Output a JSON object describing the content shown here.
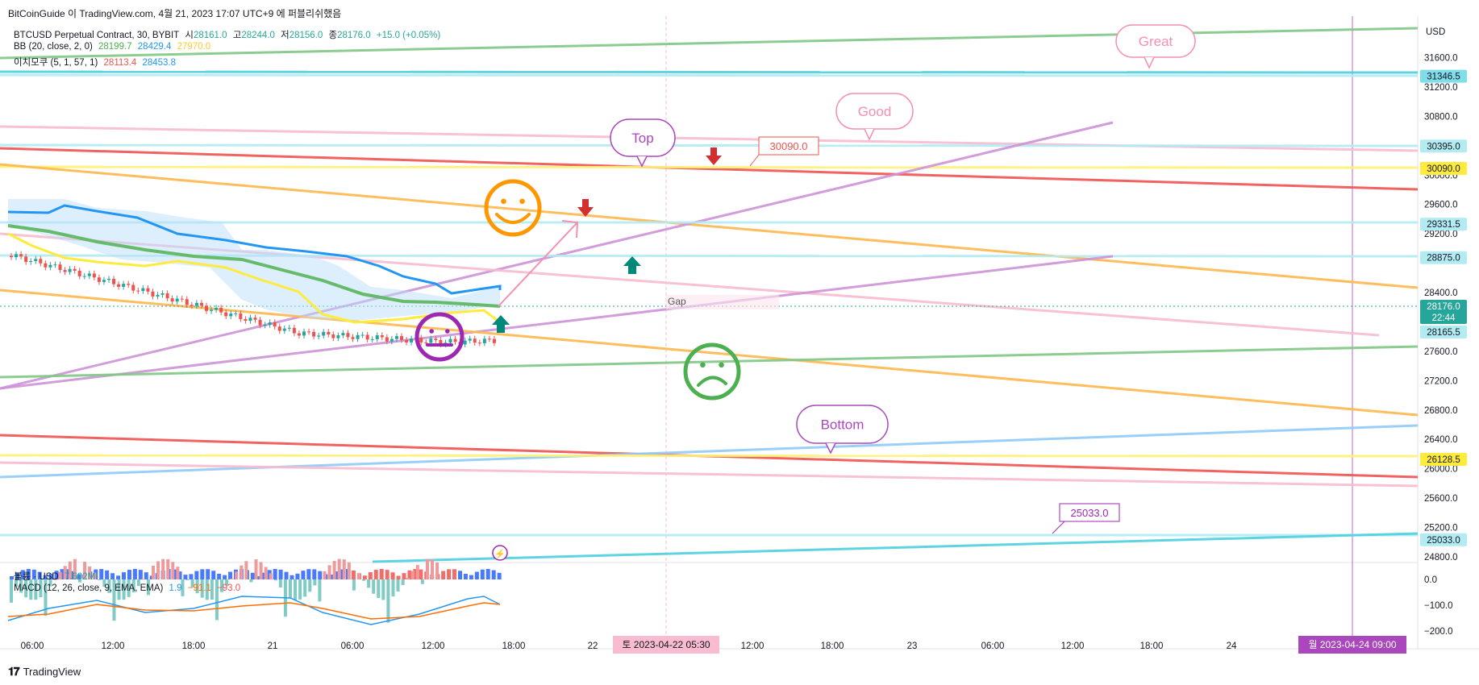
{
  "header": {
    "publish_info": "BitCoinGuide 이 TradingView.com, 4월 21, 2023 17:07 UTC+9 에 퍼블리쉬했음"
  },
  "legend": {
    "symbol": "BTCUSD Perpetual Contract, 30, BYBIT",
    "open_label": "시",
    "open": "28161.0",
    "high_label": "고",
    "high": "28244.0",
    "low_label": "저",
    "low": "28156.0",
    "close_label": "종",
    "close": "28176.0",
    "change": "+15.0 (+0.05%)",
    "bb_label": "BB (20, close, 2, 0)",
    "bb_values": [
      "28199.7",
      "28429.4",
      "27970.0"
    ],
    "ichimoku_label": "이치모쿠 (5, 1, 57, 1)",
    "ichimoku_values": [
      "28113.4",
      "28453.8"
    ],
    "volume_label": "볼륨 · USD",
    "volume_value": "7.602M",
    "macd_label": "MACD (12, 26, close, 9, EMA, EMA)",
    "macd_values": [
      "1.9",
      "−91.1",
      "−93.0"
    ]
  },
  "colors": {
    "up": "#26a69a",
    "down": "#ef5350",
    "orange": "#ff9800",
    "purple": "#9c27b0",
    "green": "#4caf50",
    "red": "#f44336",
    "yellow": "#ffeb3b",
    "cyan": "#80deea",
    "pink": "#f8bbd0",
    "blue": "#2196f3",
    "lightblue": "#90caf9"
  },
  "chart_data": {
    "type": "candlestick",
    "currency": "USD",
    "price_axis": {
      "ticks": [
        "31600.0",
        "31200.0",
        "30800.0",
        "30000.0",
        "29600.0",
        "29200.0",
        "28400.0",
        "27600.0",
        "27200.0",
        "26800.0",
        "26400.0",
        "26000.0",
        "25600.0",
        "25200.0",
        "24800.0"
      ]
    },
    "macd_axis": {
      "ticks": [
        "0.0",
        "−100.0",
        "−200.0"
      ]
    },
    "time_axis": {
      "ticks": [
        "06:00",
        "12:00",
        "18:00",
        "21",
        "06:00",
        "12:00",
        "18:00",
        "22",
        "12:00",
        "18:00",
        "23",
        "06:00",
        "12:00",
        "18:00",
        "24"
      ]
    },
    "crosshair_labels": [
      "토 2023-04-22  05:30",
      "월 2023-04-24  09:00"
    ],
    "price_labels": [
      {
        "text": "31346.5",
        "color": "#80deea"
      },
      {
        "text": "30395.0",
        "color": "#b2ebf2"
      },
      {
        "text": "30090.0",
        "color": "#ffeb3b"
      },
      {
        "text": "29331.5",
        "color": "#b2ebf2"
      },
      {
        "text": "28875.0",
        "color": "#b2ebf2"
      },
      {
        "text": "28176.0",
        "sub": "22:44",
        "color": "#26a69a"
      },
      {
        "text": "28165.5",
        "color": "#b2ebf2"
      },
      {
        "text": "26128.5",
        "color": "#ffeb3b"
      },
      {
        "text": "25033.0",
        "color": "#b2ebf2"
      }
    ],
    "annotations": {
      "great": "Great",
      "good": "Good",
      "top": "Top",
      "bottom": "Bottom",
      "gap": "Gap",
      "level_30090": "30090.0",
      "level_25033": "25033.0"
    },
    "axis_currency_label": "USD"
  },
  "footer": {
    "brand": "TradingView"
  }
}
